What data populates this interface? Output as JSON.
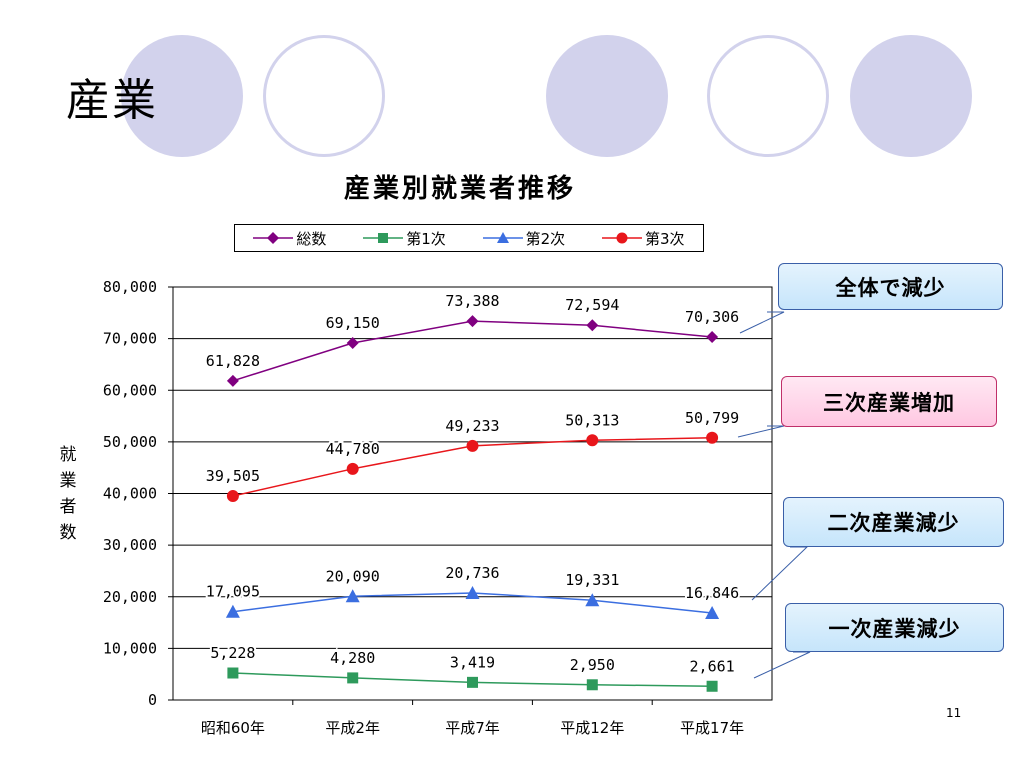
{
  "slide": {
    "title": "産業",
    "page_number": "11"
  },
  "colors": {
    "circle": "#d2d2ec",
    "total": "#800080",
    "primary": "#2e9a5c",
    "secondary": "#3b6ee0",
    "tertiary": "#e8161b"
  },
  "chart_data": {
    "type": "line",
    "title": "産業別就業者推移",
    "xlabel": "",
    "ylabel": "就業者数",
    "ylabel_chars": [
      "就",
      "業",
      "者",
      "数"
    ],
    "categories": [
      "昭和60年",
      "平成2年",
      "平成7年",
      "平成12年",
      "平成17年"
    ],
    "ylim": [
      0,
      80000
    ],
    "yticks": [
      0,
      10000,
      20000,
      30000,
      40000,
      50000,
      60000,
      70000,
      80000
    ],
    "ytick_labels": [
      "0",
      "10,000",
      "20,000",
      "30,000",
      "40,000",
      "50,000",
      "60,000",
      "70,000",
      "80,000"
    ],
    "grid": true,
    "legend_position": "top",
    "series": [
      {
        "name": "総数",
        "key": "total",
        "marker": "diamond",
        "values": [
          61828,
          69150,
          73388,
          72594,
          70306
        ],
        "labels": [
          "61,828",
          "69,150",
          "73,388",
          "72,594",
          "70,306"
        ]
      },
      {
        "name": "第1次",
        "key": "primary",
        "marker": "square",
        "values": [
          5228,
          4280,
          3419,
          2950,
          2661
        ],
        "labels": [
          "5,228",
          "4,280",
          "3,419",
          "2,950",
          "2,661"
        ]
      },
      {
        "name": "第2次",
        "key": "secondary",
        "marker": "triangle",
        "values": [
          17095,
          20090,
          20736,
          19331,
          16846
        ],
        "labels": [
          "17,095",
          "20,090",
          "20,736",
          "19,331",
          "16,846"
        ]
      },
      {
        "name": "第3次",
        "key": "tertiary",
        "marker": "circle",
        "values": [
          39505,
          44780,
          49233,
          50313,
          50799
        ],
        "labels": [
          "39,505",
          "44,780",
          "49,233",
          "50,313",
          "50,799"
        ]
      }
    ],
    "annotations": [
      {
        "text": "全体で減少",
        "style": "blue"
      },
      {
        "text": "三次産業増加",
        "style": "pink"
      },
      {
        "text": "二次産業減少",
        "style": "blue"
      },
      {
        "text": "一次産業減少",
        "style": "blue"
      }
    ]
  }
}
